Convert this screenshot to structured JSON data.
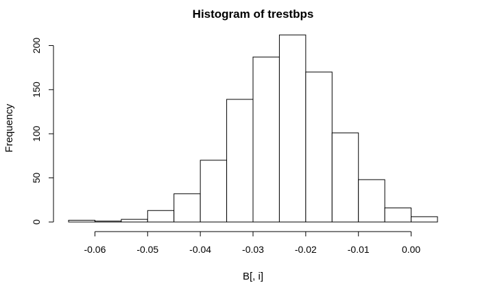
{
  "chart_data": {
    "type": "bar",
    "title": "Histogram of  trestbps",
    "xlabel": "B[, i]",
    "ylabel": "Frequency",
    "bin_edges": [
      -0.065,
      -0.06,
      -0.055,
      -0.05,
      -0.045,
      -0.04,
      -0.035,
      -0.03,
      -0.025,
      -0.02,
      -0.015,
      -0.01,
      -0.005,
      0.0,
      0.005
    ],
    "values": [
      2,
      1,
      3,
      13,
      32,
      70,
      139,
      187,
      212,
      170,
      101,
      48,
      16,
      6
    ],
    "xlim": [
      -0.065,
      0.005
    ],
    "ylim": [
      0,
      212
    ],
    "x_ticks": [
      -0.06,
      -0.05,
      -0.04,
      -0.03,
      -0.02,
      -0.01,
      0.0
    ],
    "x_tick_labels": [
      "-0.06",
      "-0.05",
      "-0.04",
      "-0.03",
      "-0.02",
      "-0.01",
      "0.00"
    ],
    "y_ticks": [
      0,
      50,
      100,
      150,
      200
    ],
    "y_tick_labels": [
      "0",
      "50",
      "100",
      "150",
      "200"
    ],
    "grid": false,
    "bar_fill": "#ffffff",
    "bar_stroke": "#000000"
  }
}
